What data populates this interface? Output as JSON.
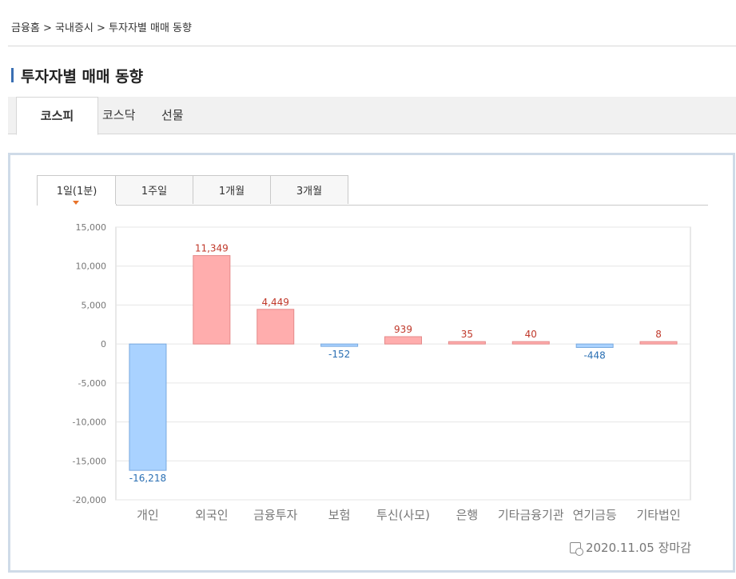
{
  "breadcrumb": "금융홈 > 국내증시 > 투자자별 매매 동향",
  "page_title": "투자자별 매매 동향",
  "market_tabs": [
    "코스피",
    "코스닥",
    "선물"
  ],
  "period_tabs": [
    "1일(1분)",
    "1주일",
    "1개월",
    "3개월"
  ],
  "footer_date": "2020.11.05 장마감",
  "colors": {
    "positive_fill": "#ffadad",
    "positive_stroke": "#e48a8a",
    "negative_fill": "#a9d2ff",
    "negative_stroke": "#79a9df",
    "positive_label": "#c0392b",
    "negative_label": "#2a6fb3",
    "title_bar": "#3a6fb3"
  },
  "chart_data": {
    "type": "bar",
    "categories": [
      "개인",
      "외국인",
      "금융투자",
      "보험",
      "투신(사모)",
      "은행",
      "기타금융기관",
      "연기금등",
      "기타법인"
    ],
    "values": [
      -16218,
      11349,
      4449,
      -152,
      939,
      35,
      40,
      -448,
      8
    ],
    "value_labels": [
      "-16,218",
      "11,349",
      "4,449",
      "-152",
      "939",
      "35",
      "40",
      "-448",
      "8"
    ],
    "ylim": [
      -20000,
      15000
    ],
    "yticks": [
      15000,
      10000,
      5000,
      0,
      -5000,
      -10000,
      -15000,
      -20000
    ],
    "ytick_labels": [
      "15,000",
      "10,000",
      "5,000",
      "0",
      "-5,000",
      "-10,000",
      "-15,000",
      "-20,000"
    ],
    "grid": true
  }
}
